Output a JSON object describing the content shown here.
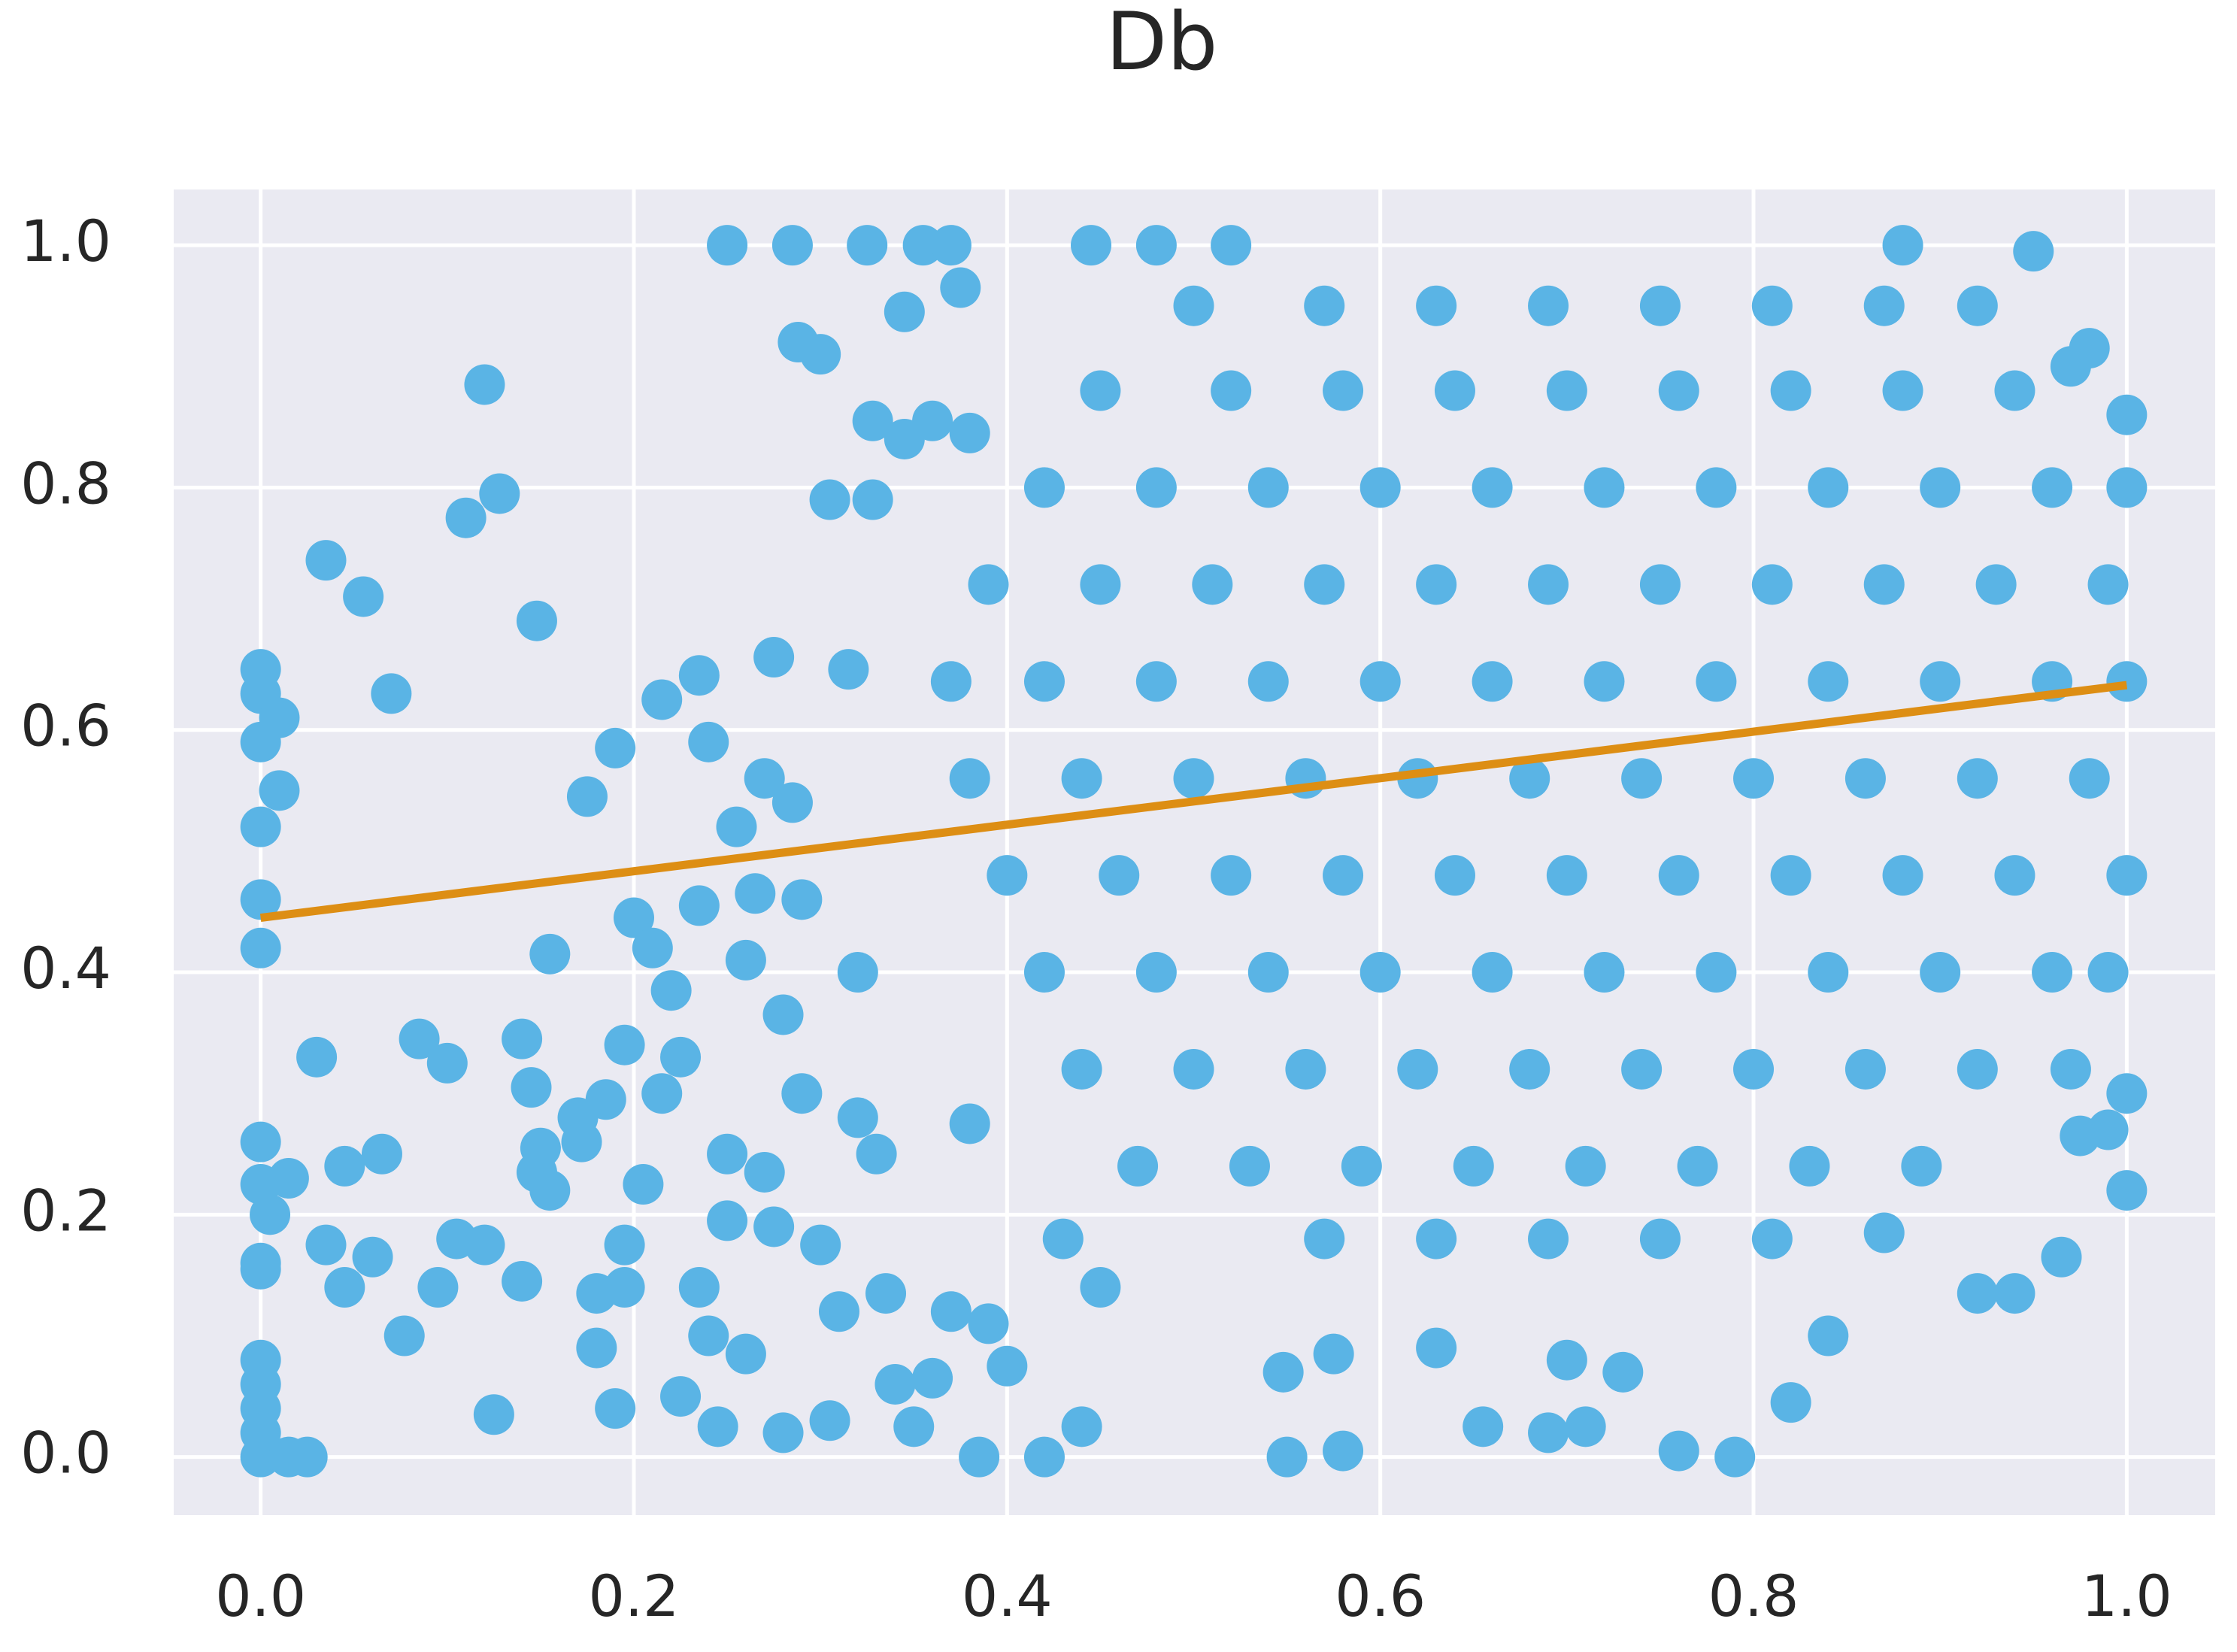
{
  "chart_data": {
    "type": "scatter",
    "title": "Db",
    "xlim": [
      -0.0466,
      1.0474
    ],
    "ylim": [
      -0.048,
      1.046
    ],
    "xticks": [
      {
        "value": 0,
        "label": "0.0"
      },
      0.2,
      0.4,
      0.6,
      0.8,
      {
        "value": 1,
        "label": "1.0"
      }
    ],
    "yticks": [
      {
        "value": 0,
        "label": "0.0"
      },
      0.2,
      0.4,
      0.6,
      0.8,
      {
        "value": 1,
        "label": "1.0"
      }
    ],
    "grid": true,
    "series": [
      {
        "color": "#5ab4e5",
        "x": [
          0,
          0,
          0.01,
          0,
          0.01,
          0,
          0,
          0,
          0,
          0,
          0.015,
          0.005,
          0,
          0,
          0,
          0,
          0,
          0,
          0,
          0.015,
          0.025,
          0.035,
          0.055,
          0.07,
          0.12,
          0.11,
          0.128,
          0.148,
          0.03,
          0.035,
          0.045,
          0.045,
          0.065,
          0.06,
          0.077,
          0.085,
          0.1,
          0.095,
          0.105,
          0.12,
          0.125,
          0.14,
          0.14,
          0.145,
          0.15,
          0.148,
          0.155,
          0.155,
          0.17,
          0.172,
          0.175,
          0.18,
          0.185,
          0.19,
          0.18,
          0.19,
          0.195,
          0.195,
          0.195,
          0.2,
          0.205,
          0.21,
          0.215,
          0.215,
          0.22,
          0.225,
          0.225,
          0.235,
          0.235,
          0.235,
          0.24,
          0.24,
          0.245,
          0.25,
          0.25,
          0.25,
          0.255,
          0.26,
          0.26,
          0.265,
          0.27,
          0.27,
          0.275,
          0.275,
          0.28,
          0.28,
          0.285,
          0.29,
          0.29,
          0.285,
          0.288,
          0.3,
          0.3,
          0.305,
          0.305,
          0.31,
          0.315,
          0.32,
          0.32,
          0.325,
          0.328,
          0.328,
          0.33,
          0.335,
          0.34,
          0.345,
          0.345,
          0.35,
          0.355,
          0.36,
          0.36,
          0.37,
          0.37,
          0.375,
          0.38,
          0.385,
          0.38,
          0.39,
          0.4,
          0.42,
          0.44,
          0.445,
          0.43,
          0.45,
          0.55,
          0.58,
          0.548,
          0.575,
          0.63,
          0.655,
          0.69,
          0.7,
          0.71,
          0.73,
          0.76,
          0.79,
          0.82,
          0.84,
          0.87,
          0.92,
          0.94,
          0.95,
          0.97,
          0.98,
          0.975,
          0.965,
          0.99,
          1.0,
          1.0,
          1.0,
          0.88,
          0.48,
          0.52,
          0.5,
          0.57,
          0.63,
          0.69,
          0.75,
          0.81,
          0.87,
          0.92,
          0.45,
          0.52,
          0.58,
          0.64,
          0.7,
          0.76,
          0.82,
          0.88,
          0.94,
          0.42,
          0.48,
          0.54,
          0.6,
          0.66,
          0.72,
          0.78,
          0.84,
          0.9,
          0.96,
          1.0,
          0.39,
          0.45,
          0.51,
          0.57,
          0.63,
          0.69,
          0.75,
          0.81,
          0.87,
          0.93,
          0.99,
          0.37,
          0.42,
          0.48,
          0.54,
          0.6,
          0.66,
          0.72,
          0.78,
          0.84,
          0.9,
          0.96,
          1.0,
          0.38,
          0.44,
          0.5,
          0.56,
          0.62,
          0.68,
          0.74,
          0.8,
          0.86,
          0.92,
          0.98,
          0.4,
          0.46,
          0.52,
          0.58,
          0.64,
          0.7,
          0.76,
          0.82,
          0.88,
          0.94,
          1.0,
          0.42,
          0.48,
          0.54,
          0.6,
          0.66,
          0.72,
          0.78,
          0.84,
          0.9,
          0.96,
          0.99,
          0.44,
          0.5,
          0.56,
          0.62,
          0.68,
          0.74,
          0.8,
          0.86,
          0.92,
          0.97,
          0.47,
          0.53,
          0.59,
          0.65,
          0.71,
          0.77,
          0.83,
          0.89,
          0.57,
          0.63,
          0.69,
          0.75,
          0.81
        ],
        "values": [
          0.65,
          0.63,
          0.61,
          0.59,
          0.55,
          0.52,
          0.46,
          0.42,
          0.26,
          0.225,
          0.23,
          0.2,
          0.16,
          0.155,
          0.08,
          0.06,
          0.04,
          0.02,
          0,
          0,
          0,
          0.74,
          0.71,
          0.63,
          0.885,
          0.775,
          0.795,
          0.69,
          0.33,
          0.175,
          0.14,
          0.24,
          0.25,
          0.165,
          0.1,
          0.345,
          0.325,
          0.14,
          0.18,
          0.175,
          0.035,
          0.345,
          0.145,
          0.305,
          0.255,
          0.235,
          0.22,
          0.415,
          0.28,
          0.26,
          0.545,
          0.135,
          0.295,
          0.585,
          0.09,
          0.04,
          0.175,
          0.34,
          0.14,
          0.445,
          0.225,
          0.42,
          0.3,
          0.625,
          0.385,
          0.33,
          0.05,
          0.455,
          0.14,
          0.645,
          0.59,
          0.1,
          0.025,
          0.195,
          0.25,
          1.0,
          0.52,
          0.085,
          0.41,
          0.465,
          0.56,
          0.235,
          0.66,
          0.19,
          0.365,
          0.02,
          0.54,
          0.46,
          0.3,
          1.0,
          0.92,
          0.91,
          0.175,
          0.79,
          0.03,
          0.12,
          0.65,
          0.4,
          0.28,
          1.0,
          0.855,
          0.79,
          0.25,
          0.135,
          0.06,
          0.945,
          0.84,
          0.025,
          1.0,
          0.065,
          0.855,
          0.12,
          1.0,
          0.965,
          0.845,
          0,
          0.275,
          0.11,
          0.075,
          0,
          0.025,
          1.0,
          0.18,
          0.14,
          0,
          0.005,
          0.07,
          0.085,
          0.09,
          0.025,
          0.02,
          0.08,
          0.025,
          0.07,
          0.005,
          0,
          0.045,
          0.1,
          0.185,
          0.135,
          0.135,
          0.995,
          0.9,
          0.915,
          0.265,
          0.165,
          0.27,
          0.22,
          0.3,
          0.86,
          1.0,
          1.0,
          1.0,
          0.95,
          0.95,
          0.95,
          0.95,
          0.95,
          0.95,
          0.95,
          0.95,
          0.88,
          0.88,
          0.88,
          0.88,
          0.88,
          0.88,
          0.88,
          0.88,
          0.88,
          0.8,
          0.8,
          0.8,
          0.8,
          0.8,
          0.8,
          0.8,
          0.8,
          0.8,
          0.8,
          0.8,
          0.72,
          0.72,
          0.72,
          0.72,
          0.72,
          0.72,
          0.72,
          0.72,
          0.72,
          0.72,
          0.72,
          0.64,
          0.64,
          0.64,
          0.64,
          0.64,
          0.64,
          0.64,
          0.64,
          0.64,
          0.64,
          0.64,
          0.64,
          0.56,
          0.56,
          0.56,
          0.56,
          0.56,
          0.56,
          0.56,
          0.56,
          0.56,
          0.56,
          0.56,
          0.48,
          0.48,
          0.48,
          0.48,
          0.48,
          0.48,
          0.48,
          0.48,
          0.48,
          0.48,
          0.48,
          0.4,
          0.4,
          0.4,
          0.4,
          0.4,
          0.4,
          0.4,
          0.4,
          0.4,
          0.4,
          0.4,
          0.32,
          0.32,
          0.32,
          0.32,
          0.32,
          0.32,
          0.32,
          0.32,
          0.32,
          0.32,
          0.24,
          0.24,
          0.24,
          0.24,
          0.24,
          0.24,
          0.24,
          0.24,
          0.18,
          0.18,
          0.18,
          0.18,
          0.18
        ]
      }
    ],
    "trend_line": {
      "color": "#dd8e14",
      "x": [
        0,
        1
      ],
      "values": [
        0.445,
        0.637
      ]
    }
  }
}
